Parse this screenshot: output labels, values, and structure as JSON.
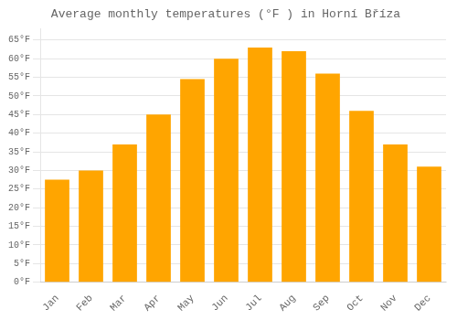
{
  "chart_data": {
    "type": "bar",
    "title": "Average monthly temperatures (°F ) in Horní Bříza",
    "categories": [
      "Jan",
      "Feb",
      "Mar",
      "Apr",
      "May",
      "Jun",
      "Jul",
      "Aug",
      "Sep",
      "Oct",
      "Nov",
      "Dec"
    ],
    "values": [
      27.5,
      30.0,
      37.0,
      45.0,
      54.5,
      60.0,
      63.0,
      62.0,
      56.0,
      46.0,
      37.0,
      31.0
    ],
    "color": "#FFA500",
    "ylim": [
      0,
      68
    ],
    "yticks": [
      {
        "value": 0,
        "label": "0°F"
      },
      {
        "value": 5,
        "label": "5°F"
      },
      {
        "value": 10,
        "label": "10°F"
      },
      {
        "value": 15,
        "label": "15°F"
      },
      {
        "value": 20,
        "label": "20°F"
      },
      {
        "value": 25,
        "label": "25°F"
      },
      {
        "value": 30,
        "label": "30°F"
      },
      {
        "value": 35,
        "label": "35°F"
      },
      {
        "value": 40,
        "label": "40°F"
      },
      {
        "value": 45,
        "label": "45°F"
      },
      {
        "value": 50,
        "label": "50°F"
      },
      {
        "value": 55,
        "label": "55°F"
      },
      {
        "value": 60,
        "label": "60°F"
      },
      {
        "value": 65,
        "label": "65°F"
      }
    ],
    "grid": true
  }
}
